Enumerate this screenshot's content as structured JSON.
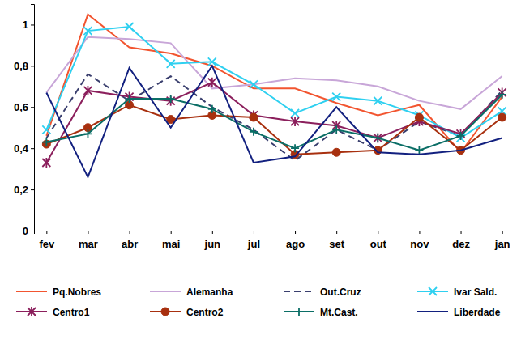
{
  "chart_data": {
    "type": "line",
    "categories": [
      "fev",
      "mar",
      "abr",
      "mai",
      "jun",
      "jul",
      "ago",
      "set",
      "out",
      "nov",
      "dez",
      "jan"
    ],
    "ylim": [
      0,
      1.1
    ],
    "yticks": [
      0,
      {
        "value": 0.2,
        "label": "0,2"
      },
      {
        "value": 0.4,
        "label": "0,4"
      },
      {
        "value": 0.6,
        "label": "0,6"
      },
      {
        "value": 0.8,
        "label": "0,8"
      },
      1
    ],
    "grid": false,
    "legend": "bottom",
    "series": [
      {
        "name": "Pq.Nobres",
        "color": "#f25530",
        "marker": "none",
        "line_style": "solid",
        "values": [
          0.46,
          1.05,
          0.89,
          0.86,
          0.8,
          0.69,
          0.69,
          0.62,
          0.56,
          0.61,
          0.38,
          0.65
        ]
      },
      {
        "name": "Alemanha",
        "color": "#c8a6d8",
        "marker": "none",
        "line_style": "solid",
        "values": [
          0.67,
          0.94,
          0.93,
          0.91,
          0.69,
          0.71,
          0.74,
          0.73,
          0.7,
          0.63,
          0.59,
          0.75
        ]
      },
      {
        "name": "Out.Cruz",
        "color": "#3a3f6e",
        "marker": "none",
        "line_style": "dashed",
        "values": [
          0.45,
          0.76,
          0.63,
          0.75,
          0.6,
          0.49,
          0.34,
          0.49,
          0.39,
          0.53,
          0.46,
          0.68
        ]
      },
      {
        "name": "Ivar Sald.",
        "color": "#2fd0f0",
        "marker": "x",
        "line_style": "solid",
        "values": [
          0.49,
          0.97,
          0.99,
          0.81,
          0.82,
          0.71,
          0.57,
          0.65,
          0.63,
          0.56,
          0.45,
          0.58
        ]
      },
      {
        "name": "Centro1",
        "color": "#8b1f5c",
        "marker": "asterisk",
        "line_style": "solid",
        "values": [
          0.33,
          0.68,
          0.65,
          0.63,
          0.72,
          0.56,
          0.53,
          0.51,
          0.45,
          0.53,
          0.47,
          0.67
        ]
      },
      {
        "name": "Centro2",
        "color": "#a8300f",
        "marker": "circle",
        "line_style": "solid",
        "values": [
          0.42,
          0.5,
          0.61,
          0.54,
          0.56,
          0.55,
          0.37,
          0.38,
          0.39,
          0.55,
          0.39,
          0.55
        ]
      },
      {
        "name": "Mt.Cast.",
        "color": "#0b6e66",
        "marker": "plus",
        "line_style": "solid",
        "values": [
          0.43,
          0.47,
          0.64,
          0.64,
          0.59,
          0.48,
          0.4,
          0.49,
          0.45,
          0.39,
          0.46,
          0.66
        ]
      },
      {
        "name": "Liberdade",
        "color": "#12207f",
        "marker": "none",
        "line_style": "solid",
        "values": [
          0.67,
          0.26,
          0.79,
          0.5,
          0.8,
          0.33,
          0.36,
          0.6,
          0.38,
          0.37,
          0.39,
          0.45
        ]
      }
    ]
  }
}
